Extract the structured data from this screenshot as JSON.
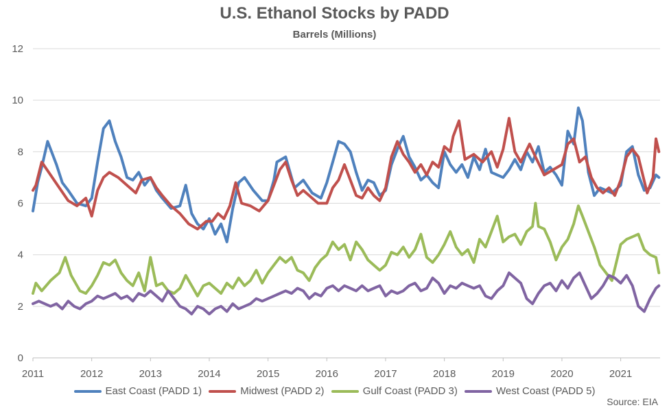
{
  "chart_data": {
    "type": "line",
    "title": "U.S. Ethanol Stocks by PADD",
    "subtitle": "Barrels (Millions)",
    "ylim": [
      0,
      12
    ],
    "y_ticks": [
      "0",
      "2",
      "4",
      "6",
      "8",
      "10",
      "12"
    ],
    "x_ticks": [
      "2011",
      "2012",
      "2013",
      "2014",
      "2015",
      "2016",
      "2017",
      "2018",
      "2019",
      "2020",
      "2021"
    ],
    "x_range": [
      2011.0,
      2021.67
    ],
    "grid": "horizontal",
    "legend_position": "bottom",
    "source": "Source: EIA",
    "series": [
      {
        "name": "East Coast (PADD 1)",
        "color": "#4F81BD",
        "x": [
          2011.0,
          2011.08,
          2011.15,
          2011.25,
          2011.4,
          2011.5,
          2011.6,
          2011.75,
          2011.9,
          2012.0,
          2012.1,
          2012.2,
          2012.3,
          2012.4,
          2012.5,
          2012.6,
          2012.7,
          2012.8,
          2012.9,
          2013.0,
          2013.1,
          2013.2,
          2013.35,
          2013.5,
          2013.6,
          2013.7,
          2013.8,
          2013.9,
          2014.0,
          2014.1,
          2014.2,
          2014.3,
          2014.4,
          2014.5,
          2014.6,
          2014.75,
          2014.9,
          2015.0,
          2015.1,
          2015.15,
          2015.3,
          2015.45,
          2015.6,
          2015.75,
          2015.9,
          2016.0,
          2016.1,
          2016.2,
          2016.3,
          2016.4,
          2016.5,
          2016.6,
          2016.7,
          2016.8,
          2016.9,
          2017.0,
          2017.1,
          2017.2,
          2017.3,
          2017.4,
          2017.5,
          2017.6,
          2017.7,
          2017.8,
          2017.9,
          2018.0,
          2018.1,
          2018.2,
          2018.3,
          2018.4,
          2018.5,
          2018.6,
          2018.7,
          2018.8,
          2018.9,
          2019.0,
          2019.1,
          2019.2,
          2019.3,
          2019.4,
          2019.5,
          2019.6,
          2019.7,
          2019.8,
          2019.9,
          2020.0,
          2020.1,
          2020.2,
          2020.28,
          2020.35,
          2020.45,
          2020.55,
          2020.65,
          2020.75,
          2020.85,
          2021.0,
          2021.1,
          2021.2,
          2021.3,
          2021.4,
          2021.5,
          2021.6,
          2021.65
        ],
        "y": [
          5.7,
          6.8,
          7.4,
          8.4,
          7.5,
          6.8,
          6.5,
          6.0,
          5.9,
          6.2,
          7.6,
          8.9,
          9.2,
          8.4,
          7.8,
          7.0,
          6.9,
          7.2,
          6.7,
          7.0,
          6.5,
          6.2,
          5.8,
          5.9,
          6.7,
          5.6,
          5.2,
          5.0,
          5.4,
          4.8,
          5.2,
          4.5,
          5.8,
          6.8,
          7.0,
          6.5,
          6.1,
          6.1,
          6.9,
          7.6,
          7.8,
          6.6,
          6.9,
          6.4,
          6.2,
          6.8,
          7.6,
          8.4,
          8.3,
          8.0,
          7.2,
          6.5,
          6.9,
          6.8,
          6.3,
          6.5,
          7.5,
          8.1,
          8.6,
          7.8,
          7.4,
          6.9,
          7.1,
          6.8,
          6.6,
          8.0,
          7.5,
          7.2,
          7.5,
          7.0,
          7.8,
          7.3,
          8.1,
          7.2,
          7.1,
          7.0,
          7.3,
          7.7,
          7.3,
          8.0,
          7.6,
          8.2,
          7.2,
          7.4,
          7.1,
          6.7,
          8.8,
          8.3,
          9.7,
          9.2,
          7.2,
          6.3,
          6.6,
          6.5,
          6.4,
          6.7,
          8.0,
          8.2,
          7.1,
          6.5,
          6.6,
          7.1,
          7.0
        ]
      },
      {
        "name": "Midwest (PADD 2)",
        "color": "#C0504D",
        "x": [
          2011.0,
          2011.05,
          2011.15,
          2011.3,
          2011.45,
          2011.6,
          2011.75,
          2011.9,
          2012.0,
          2012.1,
          2012.2,
          2012.3,
          2012.45,
          2012.6,
          2012.75,
          2012.85,
          2013.0,
          2013.1,
          2013.2,
          2013.35,
          2013.5,
          2013.65,
          2013.8,
          2013.95,
          2014.05,
          2014.15,
          2014.25,
          2014.35,
          2014.45,
          2014.55,
          2014.7,
          2014.85,
          2015.0,
          2015.1,
          2015.2,
          2015.3,
          2015.4,
          2015.5,
          2015.6,
          2015.7,
          2015.85,
          2016.0,
          2016.1,
          2016.2,
          2016.3,
          2016.4,
          2016.5,
          2016.6,
          2016.7,
          2016.8,
          2016.9,
          2017.0,
          2017.1,
          2017.2,
          2017.3,
          2017.4,
          2017.5,
          2017.6,
          2017.7,
          2017.8,
          2017.9,
          2018.0,
          2018.1,
          2018.15,
          2018.25,
          2018.35,
          2018.5,
          2018.65,
          2018.8,
          2018.9,
          2019.0,
          2019.1,
          2019.2,
          2019.3,
          2019.45,
          2019.55,
          2019.7,
          2019.85,
          2020.0,
          2020.1,
          2020.2,
          2020.3,
          2020.4,
          2020.5,
          2020.6,
          2020.7,
          2020.8,
          2020.9,
          2021.0,
          2021.1,
          2021.2,
          2021.3,
          2021.45,
          2021.55,
          2021.6,
          2021.65
        ],
        "y": [
          6.5,
          6.7,
          7.6,
          7.1,
          6.6,
          6.1,
          5.9,
          6.2,
          5.5,
          6.5,
          7.0,
          7.2,
          7.0,
          6.7,
          6.4,
          6.9,
          7.0,
          6.6,
          6.3,
          5.9,
          5.6,
          5.2,
          5.0,
          5.3,
          5.3,
          5.6,
          5.4,
          5.9,
          6.8,
          6.0,
          5.9,
          5.7,
          6.1,
          6.7,
          7.3,
          7.6,
          6.9,
          6.3,
          6.5,
          6.3,
          6.0,
          6.0,
          6.6,
          6.9,
          7.5,
          6.9,
          6.3,
          6.2,
          6.6,
          6.3,
          6.1,
          6.6,
          7.8,
          8.4,
          7.9,
          7.6,
          7.2,
          7.5,
          7.1,
          7.6,
          7.4,
          8.2,
          8.0,
          8.6,
          9.2,
          7.7,
          7.9,
          7.6,
          8.0,
          7.4,
          8.1,
          9.3,
          8.0,
          7.6,
          8.3,
          7.8,
          7.1,
          7.3,
          7.5,
          8.3,
          8.5,
          7.6,
          7.8,
          7.0,
          6.6,
          6.4,
          6.6,
          6.3,
          6.9,
          7.8,
          8.1,
          7.8,
          6.4,
          7.0,
          8.5,
          8.0
        ]
      },
      {
        "name": "Gulf Coast (PADD 3)",
        "color": "#9BBB59",
        "x": [
          2011.0,
          2011.05,
          2011.15,
          2011.3,
          2011.45,
          2011.55,
          2011.65,
          2011.8,
          2011.9,
          2012.0,
          2012.1,
          2012.2,
          2012.3,
          2012.4,
          2012.5,
          2012.6,
          2012.7,
          2012.8,
          2012.9,
          2013.0,
          2013.1,
          2013.2,
          2013.3,
          2013.4,
          2013.5,
          2013.6,
          2013.7,
          2013.8,
          2013.9,
          2014.0,
          2014.1,
          2014.2,
          2014.3,
          2014.4,
          2014.5,
          2014.6,
          2014.7,
          2014.8,
          2014.9,
          2015.0,
          2015.1,
          2015.2,
          2015.3,
          2015.4,
          2015.5,
          2015.6,
          2015.7,
          2015.8,
          2015.9,
          2016.0,
          2016.1,
          2016.2,
          2016.3,
          2016.4,
          2016.5,
          2016.6,
          2016.7,
          2016.8,
          2016.9,
          2017.0,
          2017.1,
          2017.2,
          2017.3,
          2017.4,
          2017.5,
          2017.6,
          2017.7,
          2017.8,
          2017.9,
          2018.0,
          2018.1,
          2018.2,
          2018.3,
          2018.4,
          2018.5,
          2018.6,
          2018.7,
          2018.8,
          2018.9,
          2019.0,
          2019.1,
          2019.2,
          2019.3,
          2019.4,
          2019.5,
          2019.55,
          2019.6,
          2019.7,
          2019.8,
          2019.9,
          2020.0,
          2020.1,
          2020.2,
          2020.28,
          2020.35,
          2020.45,
          2020.55,
          2020.65,
          2020.75,
          2020.85,
          2021.0,
          2021.1,
          2021.2,
          2021.3,
          2021.4,
          2021.5,
          2021.6,
          2021.65
        ],
        "y": [
          2.5,
          2.9,
          2.6,
          3.0,
          3.3,
          3.9,
          3.2,
          2.6,
          2.5,
          2.8,
          3.2,
          3.7,
          3.6,
          3.8,
          3.3,
          3.0,
          2.8,
          3.3,
          2.6,
          3.9,
          2.8,
          2.9,
          2.6,
          2.5,
          2.7,
          3.2,
          2.8,
          2.4,
          2.8,
          2.9,
          2.7,
          2.5,
          2.9,
          2.7,
          3.1,
          2.8,
          3.0,
          3.4,
          2.9,
          3.3,
          3.6,
          3.9,
          3.7,
          3.9,
          3.4,
          3.3,
          3.0,
          3.5,
          3.8,
          4.0,
          4.5,
          4.2,
          4.4,
          3.8,
          4.5,
          4.2,
          3.8,
          3.6,
          3.4,
          3.6,
          4.1,
          4.0,
          4.3,
          3.9,
          4.2,
          4.8,
          3.9,
          3.7,
          4.0,
          4.4,
          4.9,
          4.3,
          4.0,
          4.2,
          3.7,
          4.6,
          4.3,
          4.9,
          5.5,
          4.5,
          4.7,
          4.8,
          4.4,
          4.9,
          5.1,
          6.0,
          5.1,
          5.0,
          4.5,
          3.8,
          4.3,
          4.6,
          5.2,
          5.9,
          5.5,
          4.9,
          4.3,
          3.6,
          3.3,
          3.0,
          4.4,
          4.6,
          4.7,
          4.8,
          4.2,
          4.0,
          3.9,
          3.3
        ]
      },
      {
        "name": "West Coast (PADD 5)",
        "color": "#8064A2",
        "x": [
          2011.0,
          2011.1,
          2011.2,
          2011.3,
          2011.4,
          2011.5,
          2011.6,
          2011.7,
          2011.8,
          2011.9,
          2012.0,
          2012.1,
          2012.2,
          2012.3,
          2012.4,
          2012.5,
          2012.6,
          2012.7,
          2012.8,
          2012.9,
          2013.0,
          2013.1,
          2013.2,
          2013.3,
          2013.4,
          2013.5,
          2013.6,
          2013.7,
          2013.8,
          2013.9,
          2014.0,
          2014.1,
          2014.2,
          2014.3,
          2014.4,
          2014.5,
          2014.6,
          2014.7,
          2014.8,
          2014.9,
          2015.0,
          2015.1,
          2015.2,
          2015.3,
          2015.4,
          2015.5,
          2015.6,
          2015.7,
          2015.8,
          2015.9,
          2016.0,
          2016.1,
          2016.2,
          2016.3,
          2016.4,
          2016.5,
          2016.6,
          2016.7,
          2016.8,
          2016.9,
          2017.0,
          2017.1,
          2017.2,
          2017.3,
          2017.4,
          2017.5,
          2017.6,
          2017.7,
          2017.8,
          2017.9,
          2018.0,
          2018.1,
          2018.2,
          2018.3,
          2018.4,
          2018.5,
          2018.6,
          2018.7,
          2018.8,
          2018.9,
          2019.0,
          2019.1,
          2019.2,
          2019.3,
          2019.4,
          2019.5,
          2019.6,
          2019.7,
          2019.8,
          2019.9,
          2020.0,
          2020.1,
          2020.2,
          2020.3,
          2020.4,
          2020.5,
          2020.6,
          2020.7,
          2020.8,
          2020.9,
          2021.0,
          2021.1,
          2021.2,
          2021.3,
          2021.4,
          2021.5,
          2021.6,
          2021.65
        ],
        "y": [
          2.1,
          2.2,
          2.1,
          2.0,
          2.1,
          1.9,
          2.2,
          2.0,
          1.9,
          2.1,
          2.2,
          2.4,
          2.3,
          2.4,
          2.5,
          2.3,
          2.4,
          2.2,
          2.5,
          2.4,
          2.6,
          2.4,
          2.2,
          2.6,
          2.3,
          2.0,
          1.9,
          1.7,
          2.0,
          1.9,
          1.7,
          1.9,
          2.0,
          1.8,
          2.1,
          1.9,
          2.0,
          2.1,
          2.3,
          2.2,
          2.3,
          2.4,
          2.5,
          2.6,
          2.5,
          2.7,
          2.6,
          2.3,
          2.5,
          2.4,
          2.7,
          2.8,
          2.6,
          2.8,
          2.7,
          2.6,
          2.8,
          2.6,
          2.7,
          2.8,
          2.4,
          2.6,
          2.5,
          2.6,
          2.8,
          2.9,
          2.6,
          2.7,
          3.1,
          2.9,
          2.5,
          2.8,
          2.7,
          2.9,
          2.8,
          2.7,
          2.8,
          2.4,
          2.3,
          2.6,
          2.8,
          3.3,
          3.1,
          2.9,
          2.3,
          2.1,
          2.5,
          2.8,
          2.9,
          2.6,
          3.0,
          2.7,
          3.1,
          3.3,
          2.8,
          2.3,
          2.5,
          2.8,
          3.2,
          3.1,
          2.9,
          3.2,
          2.8,
          2.0,
          1.8,
          2.3,
          2.7,
          2.8
        ]
      }
    ]
  }
}
